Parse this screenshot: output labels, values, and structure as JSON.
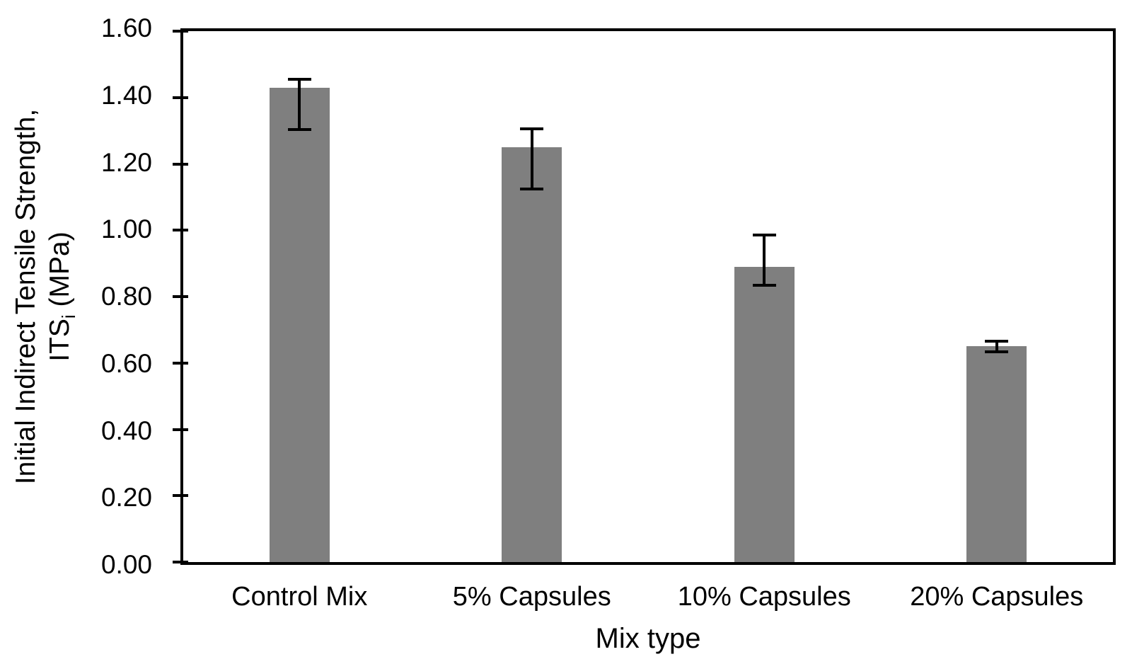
{
  "chart_data": {
    "type": "bar",
    "title": "",
    "xlabel": "Mix type",
    "ylabel_line1": "Initial Indirect Tensile Strength,",
    "ylabel_line2_pre": "ITS",
    "ylabel_line2_sub": "i",
    "ylabel_line2_post": " (MPa)",
    "categories": [
      "Control Mix",
      "5% Capsules",
      "10% Capsules",
      "20% Capsules"
    ],
    "values": [
      1.43,
      1.25,
      0.89,
      0.65
    ],
    "error_upper": [
      1.46,
      1.31,
      0.99,
      0.67
    ],
    "error_lower": [
      1.3,
      1.12,
      0.83,
      0.63
    ],
    "ylim": [
      0,
      1.6
    ],
    "ytick_step": 0.2,
    "yticks": [
      "0.00",
      "0.20",
      "0.40",
      "0.60",
      "0.80",
      "1.00",
      "1.20",
      "1.40",
      "1.60"
    ],
    "bar_color": "#7F7F7F",
    "axis_color": "#000000",
    "error_bar_color": "#000000",
    "background_color": "#FFFFFF",
    "grid": false,
    "legend": "none"
  }
}
